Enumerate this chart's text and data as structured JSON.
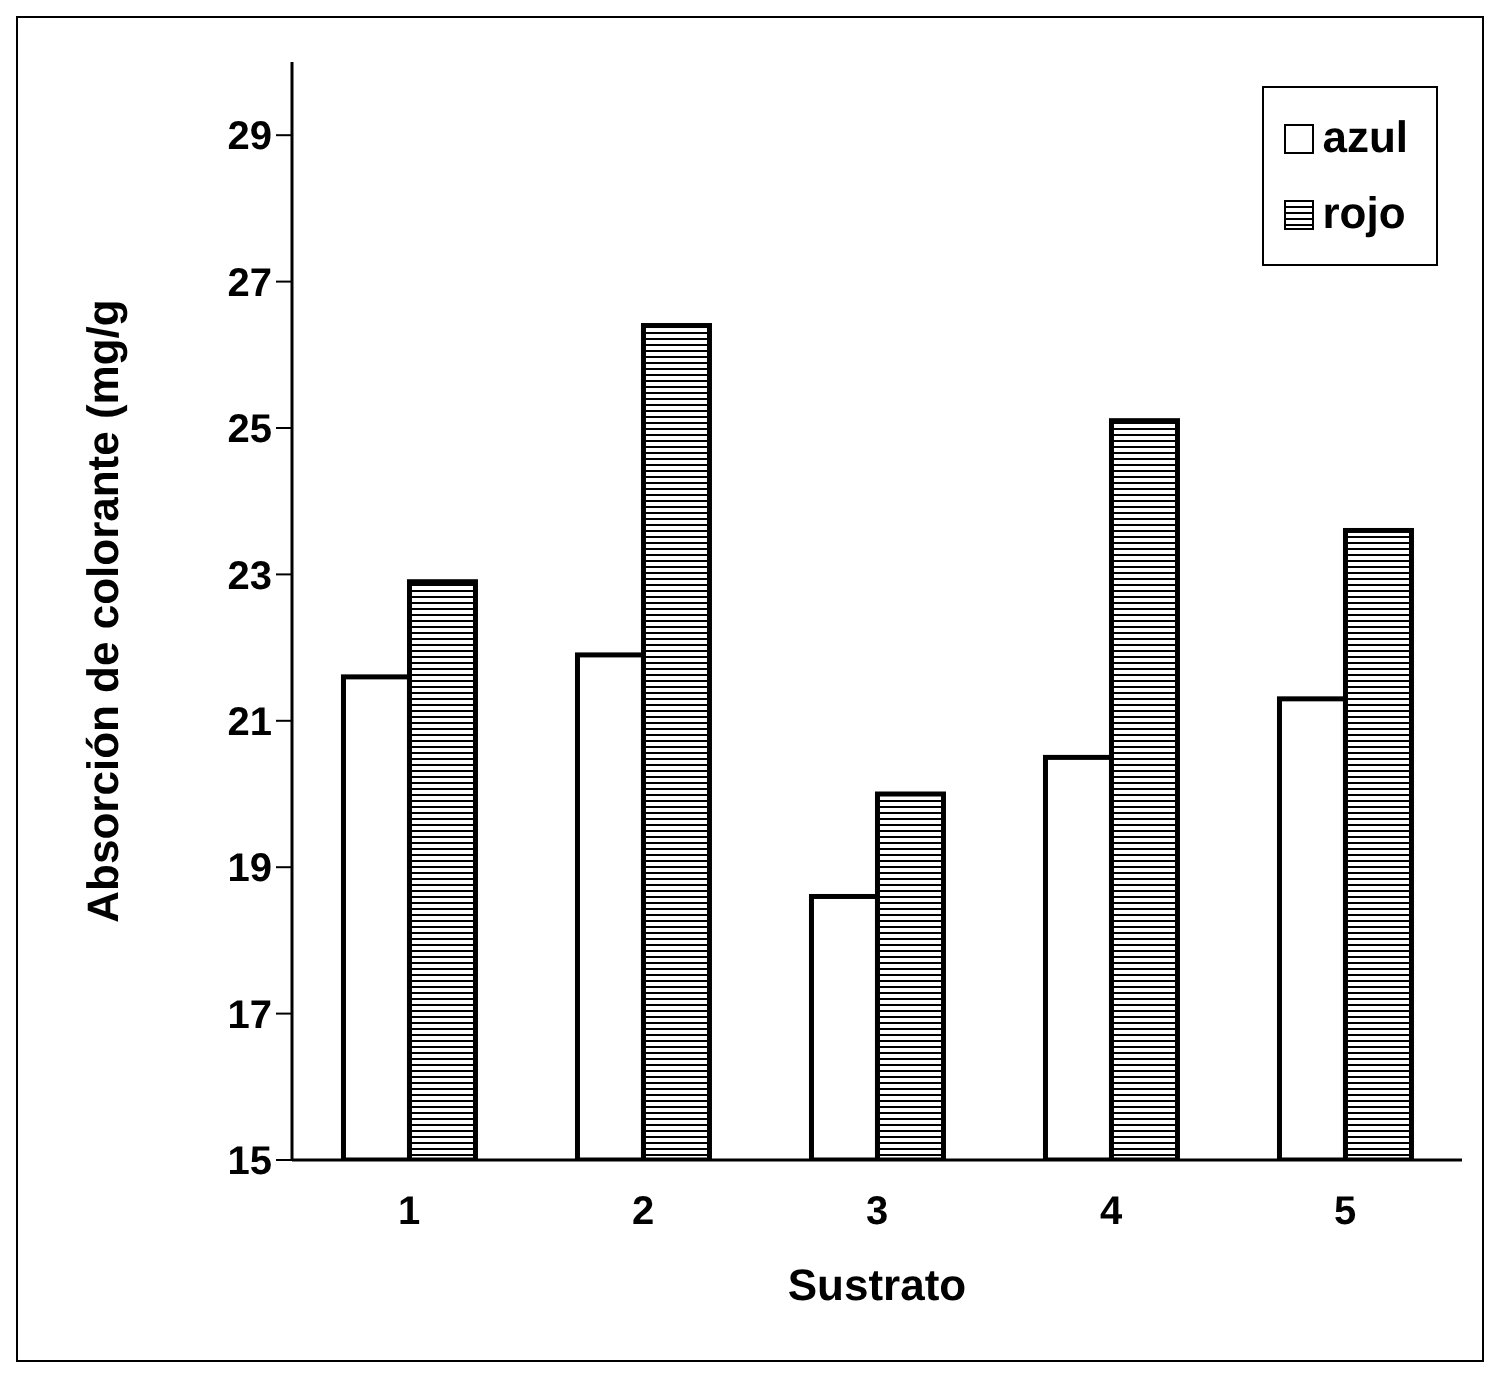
{
  "chart_data": {
    "type": "bar",
    "xlabel": "Sustrato",
    "ylabel": "Absorción de colorante (mg/g",
    "categories": [
      "1",
      "2",
      "3",
      "4",
      "5"
    ],
    "series": [
      {
        "name": "azul",
        "color": "#ffffff",
        "values": [
          21.6,
          21.9,
          18.6,
          20.5,
          21.3
        ]
      },
      {
        "name": "rojo",
        "color": "#000000",
        "values": [
          22.9,
          26.4,
          20.0,
          25.1,
          23.6
        ]
      }
    ],
    "ylim": [
      15,
      30
    ],
    "yticks": [
      15,
      17,
      19,
      21,
      23,
      25,
      27,
      29
    ],
    "grid": false,
    "legend": "top right"
  }
}
